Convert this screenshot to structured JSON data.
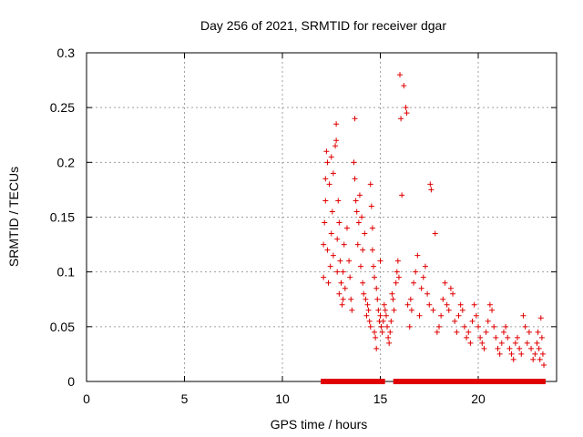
{
  "chart_data": {
    "type": "scatter",
    "title": "Day 256 of 2021, SRMTID for receiver dgar",
    "xlabel": "GPS time / hours",
    "ylabel": "SRMTID / TECUs",
    "xlim": [
      0,
      24
    ],
    "ylim": [
      0,
      0.3
    ],
    "grid": true,
    "marker": "+",
    "x_ticks": [
      0,
      5,
      10,
      15,
      20
    ],
    "x_tick_labels": [
      "0",
      "5",
      "10",
      "15",
      "20"
    ],
    "y_ticks": [
      0,
      0.05,
      0.1,
      0.15,
      0.2,
      0.25,
      0.3
    ],
    "y_tick_labels": [
      "0",
      "0.05",
      "0.1",
      "0.15",
      "0.2",
      "0.25",
      "0.3"
    ],
    "series": [
      {
        "name": "SRMTID",
        "color": "#e00000",
        "points": [
          [
            12.1,
            0.095
          ],
          [
            12.1,
            0.125
          ],
          [
            12.15,
            0.145
          ],
          [
            12.2,
            0.165
          ],
          [
            12.2,
            0.185
          ],
          [
            12.25,
            0.21
          ],
          [
            12.3,
            0.2
          ],
          [
            12.3,
            0.12
          ],
          [
            12.35,
            0.09
          ],
          [
            12.4,
            0.18
          ],
          [
            12.45,
            0.105
          ],
          [
            12.5,
            0.135
          ],
          [
            12.5,
            0.205
          ],
          [
            12.55,
            0.155
          ],
          [
            12.6,
            0.19
          ],
          [
            12.6,
            0.115
          ],
          [
            12.7,
            0.215
          ],
          [
            12.75,
            0.22
          ],
          [
            12.75,
            0.235
          ],
          [
            12.8,
            0.1
          ],
          [
            12.8,
            0.13
          ],
          [
            12.85,
            0.165
          ],
          [
            12.9,
            0.145
          ],
          [
            12.9,
            0.08
          ],
          [
            12.95,
            0.11
          ],
          [
            13.0,
            0.09
          ],
          [
            13.05,
            0.07
          ],
          [
            13.1,
            0.075
          ],
          [
            13.1,
            0.1
          ],
          [
            13.15,
            0.125
          ],
          [
            13.2,
            0.085
          ],
          [
            13.3,
            0.14
          ],
          [
            13.4,
            0.11
          ],
          [
            13.45,
            0.095
          ],
          [
            13.5,
            0.075
          ],
          [
            13.55,
            0.065
          ],
          [
            13.65,
            0.2
          ],
          [
            13.7,
            0.24
          ],
          [
            13.7,
            0.185
          ],
          [
            13.75,
            0.165
          ],
          [
            13.8,
            0.155
          ],
          [
            13.85,
            0.125
          ],
          [
            13.9,
            0.145
          ],
          [
            13.95,
            0.17
          ],
          [
            14.0,
            0.105
          ],
          [
            14.05,
            0.15
          ],
          [
            14.1,
            0.12
          ],
          [
            14.1,
            0.09
          ],
          [
            14.15,
            0.08
          ],
          [
            14.2,
            0.135
          ],
          [
            14.25,
            0.075
          ],
          [
            14.3,
            0.06
          ],
          [
            14.35,
            0.07
          ],
          [
            14.4,
            0.065
          ],
          [
            14.45,
            0.055
          ],
          [
            14.5,
            0.05
          ],
          [
            14.5,
            0.18
          ],
          [
            14.55,
            0.16
          ],
          [
            14.6,
            0.14
          ],
          [
            14.6,
            0.12
          ],
          [
            14.65,
            0.105
          ],
          [
            14.7,
            0.095
          ],
          [
            14.7,
            0.045
          ],
          [
            14.75,
            0.04
          ],
          [
            14.8,
            0.03
          ],
          [
            14.8,
            0.085
          ],
          [
            14.85,
            0.075
          ],
          [
            14.9,
            0.065
          ],
          [
            14.95,
            0.055
          ],
          [
            15.0,
            0.06
          ],
          [
            15.0,
            0.11
          ],
          [
            15.05,
            0.05
          ],
          [
            15.1,
            0.045
          ],
          [
            15.15,
            0.055
          ],
          [
            15.2,
            0.07
          ],
          [
            15.25,
            0.065
          ],
          [
            15.3,
            0.06
          ],
          [
            15.35,
            0.05
          ],
          [
            15.4,
            0.04
          ],
          [
            15.45,
            0.035
          ],
          [
            15.5,
            0.045
          ],
          [
            15.55,
            0.055
          ],
          [
            15.6,
            0.08
          ],
          [
            15.65,
            0.075
          ],
          [
            15.7,
            0.065
          ],
          [
            15.8,
            0.09
          ],
          [
            15.85,
            0.1
          ],
          [
            15.9,
            0.11
          ],
          [
            15.95,
            0.095
          ],
          [
            16.0,
            0.28
          ],
          [
            16.05,
            0.24
          ],
          [
            16.1,
            0.17
          ],
          [
            16.2,
            0.27
          ],
          [
            16.3,
            0.25
          ],
          [
            16.35,
            0.245
          ],
          [
            16.4,
            0.07
          ],
          [
            16.5,
            0.05
          ],
          [
            16.55,
            0.075
          ],
          [
            16.6,
            0.065
          ],
          [
            16.7,
            0.09
          ],
          [
            16.8,
            0.1
          ],
          [
            16.9,
            0.115
          ],
          [
            17.0,
            0.06
          ],
          [
            17.1,
            0.085
          ],
          [
            17.2,
            0.095
          ],
          [
            17.3,
            0.105
          ],
          [
            17.4,
            0.08
          ],
          [
            17.5,
            0.07
          ],
          [
            17.55,
            0.18
          ],
          [
            17.6,
            0.175
          ],
          [
            17.7,
            0.065
          ],
          [
            17.8,
            0.135
          ],
          [
            17.9,
            0.045
          ],
          [
            18.0,
            0.05
          ],
          [
            18.1,
            0.06
          ],
          [
            18.2,
            0.075
          ],
          [
            18.3,
            0.09
          ],
          [
            18.4,
            0.07
          ],
          [
            18.5,
            0.065
          ],
          [
            18.6,
            0.085
          ],
          [
            18.7,
            0.08
          ],
          [
            18.8,
            0.055
          ],
          [
            18.9,
            0.045
          ],
          [
            19.0,
            0.06
          ],
          [
            19.1,
            0.07
          ],
          [
            19.2,
            0.065
          ],
          [
            19.3,
            0.05
          ],
          [
            19.4,
            0.04
          ],
          [
            19.5,
            0.045
          ],
          [
            19.6,
            0.035
          ],
          [
            19.7,
            0.055
          ],
          [
            19.8,
            0.07
          ],
          [
            19.9,
            0.06
          ],
          [
            20.0,
            0.05
          ],
          [
            20.1,
            0.04
          ],
          [
            20.2,
            0.035
          ],
          [
            20.3,
            0.03
          ],
          [
            20.4,
            0.045
          ],
          [
            20.5,
            0.055
          ],
          [
            20.6,
            0.07
          ],
          [
            20.7,
            0.065
          ],
          [
            20.8,
            0.05
          ],
          [
            20.9,
            0.04
          ],
          [
            21.0,
            0.03
          ],
          [
            21.1,
            0.025
          ],
          [
            21.2,
            0.035
          ],
          [
            21.3,
            0.045
          ],
          [
            21.4,
            0.05
          ],
          [
            21.5,
            0.04
          ],
          [
            21.6,
            0.03
          ],
          [
            21.7,
            0.025
          ],
          [
            21.8,
            0.02
          ],
          [
            21.9,
            0.035
          ],
          [
            22.0,
            0.04
          ],
          [
            22.1,
            0.03
          ],
          [
            22.2,
            0.025
          ],
          [
            22.3,
            0.06
          ],
          [
            22.4,
            0.05
          ],
          [
            22.5,
            0.035
          ],
          [
            22.6,
            0.045
          ],
          [
            22.7,
            0.03
          ],
          [
            22.8,
            0.02
          ],
          [
            22.9,
            0.025
          ],
          [
            23.0,
            0.035
          ],
          [
            23.05,
            0.045
          ],
          [
            23.1,
            0.03
          ],
          [
            23.15,
            0.02
          ],
          [
            23.2,
            0.058
          ],
          [
            23.25,
            0.04
          ],
          [
            23.3,
            0.025
          ],
          [
            23.35,
            0.015
          ]
        ]
      },
      {
        "name": "baseline",
        "color": "#e00000",
        "marker": "square",
        "x": [
          12.1,
          12.25,
          12.4,
          12.55,
          12.7,
          12.9,
          13.1,
          13.3,
          13.5,
          13.7,
          13.9,
          14.1,
          14.3,
          14.5,
          14.7,
          14.9,
          15.1,
          15.8,
          15.95,
          16.1,
          16.25,
          16.4,
          16.55,
          16.7,
          16.85,
          17.0,
          17.15,
          17.3,
          17.45,
          17.6,
          17.75,
          17.9,
          18.05,
          18.2,
          18.35,
          18.5,
          18.65,
          18.8,
          18.95,
          19.1,
          19.25,
          19.4,
          19.55,
          19.7,
          19.85,
          20.0,
          20.15,
          20.3,
          20.45,
          20.6,
          20.75,
          20.9,
          21.05,
          21.2,
          21.35,
          21.5,
          21.65,
          21.8,
          21.95,
          22.1,
          22.25,
          22.4,
          22.55,
          22.7,
          22.85,
          23.0,
          23.15,
          23.3
        ],
        "y": 0
      }
    ]
  }
}
